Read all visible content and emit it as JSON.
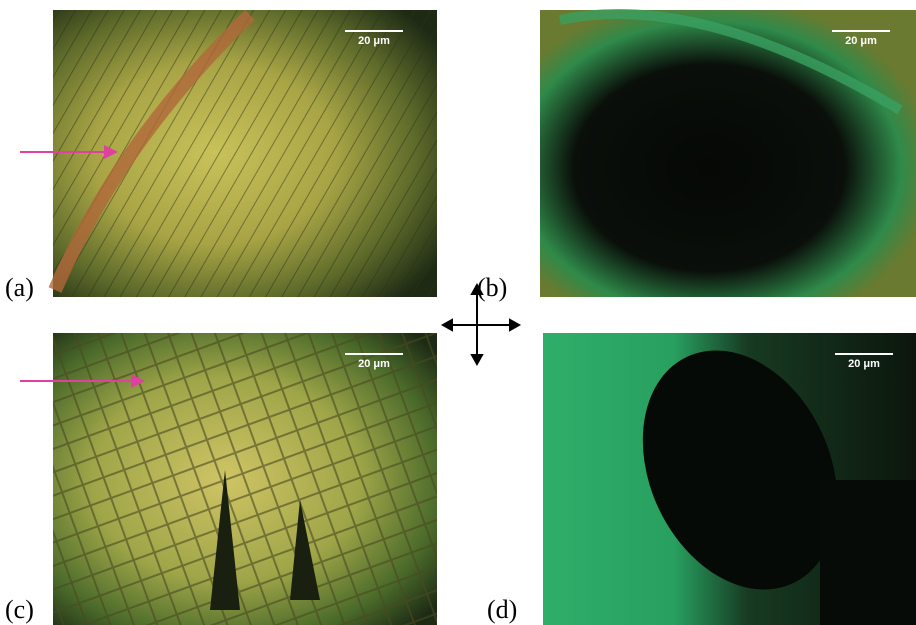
{
  "panels": [
    {
      "label": "(a)",
      "scale_bar": "20 μm"
    },
    {
      "label": "(b)",
      "scale_bar": "20 μm"
    },
    {
      "label": "(c)",
      "scale_bar": "20 μm"
    },
    {
      "label": "(d)",
      "scale_bar": "20 μm"
    }
  ]
}
